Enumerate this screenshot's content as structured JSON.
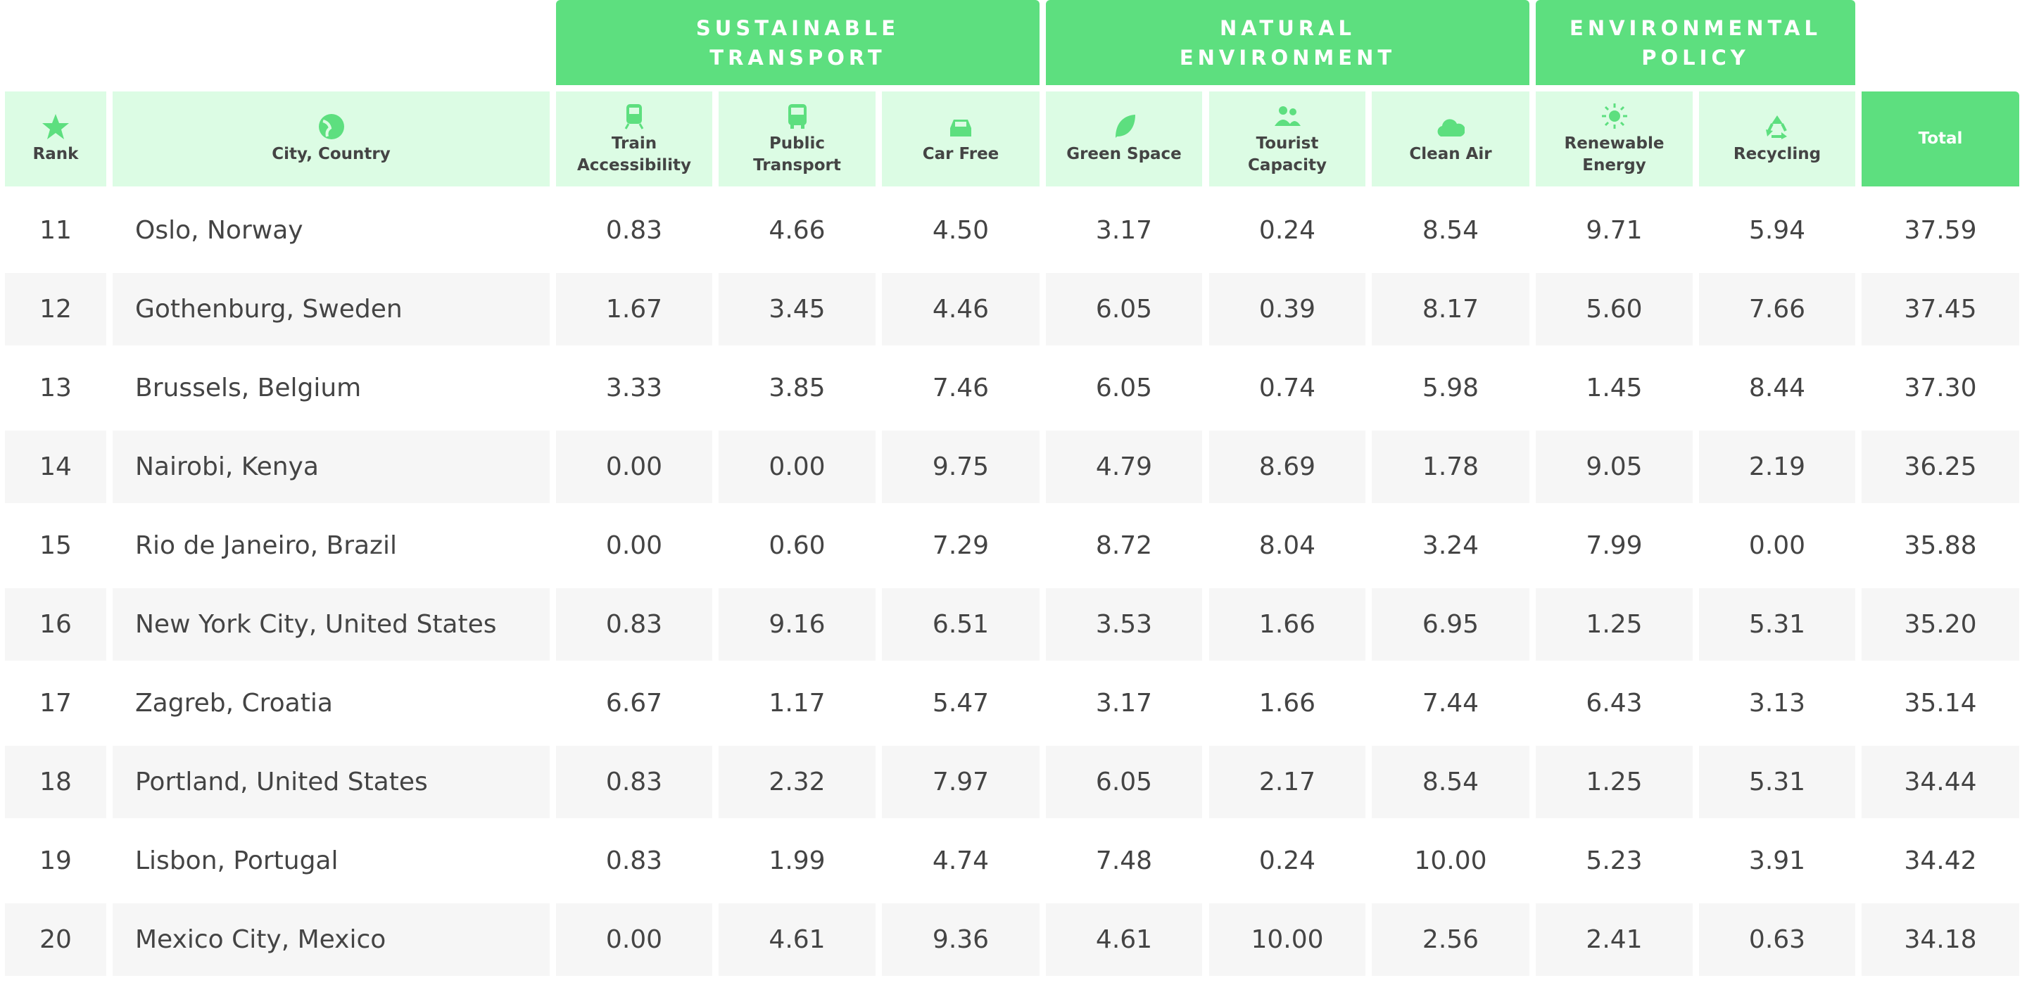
{
  "groups": [
    {
      "label": "SUSTAINABLE TRANSPORT",
      "span": 3
    },
    {
      "label": "NATURAL ENVIRONMENT",
      "span": 3
    },
    {
      "label": "ENVIRONMENTAL POLICY",
      "span": 2
    }
  ],
  "columns": [
    "Rank",
    "City, Country",
    "Train Accessibility",
    "Public Transport",
    "Car Free",
    "Green Space",
    "Tourist Capacity",
    "Clean Air",
    "Renewable Energy",
    "Recycling",
    "Total"
  ],
  "rows": [
    [
      "11",
      "Oslo, Norway",
      "0.83",
      "4.66",
      "4.50",
      "3.17",
      "0.24",
      "8.54",
      "9.71",
      "5.94",
      "37.59"
    ],
    [
      "12",
      "Gothenburg, Sweden",
      "1.67",
      "3.45",
      "4.46",
      "6.05",
      "0.39",
      "8.17",
      "5.60",
      "7.66",
      "37.45"
    ],
    [
      "13",
      "Brussels, Belgium",
      "3.33",
      "3.85",
      "7.46",
      "6.05",
      "0.74",
      "5.98",
      "1.45",
      "8.44",
      "37.30"
    ],
    [
      "14",
      "Nairobi, Kenya",
      "0.00",
      "0.00",
      "9.75",
      "4.79",
      "8.69",
      "1.78",
      "9.05",
      "2.19",
      "36.25"
    ],
    [
      "15",
      "Rio de Janeiro, Brazil",
      "0.00",
      "0.60",
      "7.29",
      "8.72",
      "8.04",
      "3.24",
      "7.99",
      "0.00",
      "35.88"
    ],
    [
      "16",
      "New York City, United States",
      "0.83",
      "9.16",
      "6.51",
      "3.53",
      "1.66",
      "6.95",
      "1.25",
      "5.31",
      "35.20"
    ],
    [
      "17",
      "Zagreb, Croatia",
      "6.67",
      "1.17",
      "5.47",
      "3.17",
      "1.66",
      "7.44",
      "6.43",
      "3.13",
      "35.14"
    ],
    [
      "18",
      "Portland, United States",
      "0.83",
      "2.32",
      "7.97",
      "6.05",
      "2.17",
      "8.54",
      "1.25",
      "5.31",
      "34.44"
    ],
    [
      "19",
      "Lisbon, Portugal",
      "0.83",
      "1.99",
      "4.74",
      "7.48",
      "0.24",
      "10.00",
      "5.23",
      "3.91",
      "34.42"
    ],
    [
      "20",
      "Mexico City, Mexico",
      "0.00",
      "4.61",
      "9.36",
      "4.61",
      "10.00",
      "2.56",
      "2.41",
      "0.63",
      "34.18"
    ]
  ]
}
